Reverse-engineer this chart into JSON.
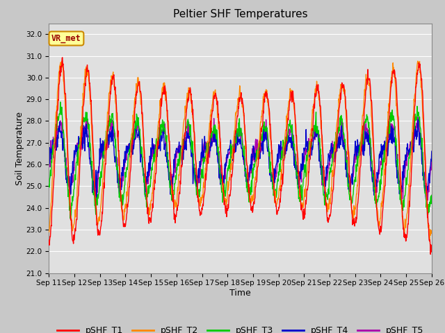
{
  "title": "Peltier SHF Temperatures",
  "xlabel": "Time",
  "ylabel": "Soil Temperature",
  "ylim": [
    21.0,
    32.5
  ],
  "yticks": [
    21.0,
    22.0,
    23.0,
    24.0,
    25.0,
    26.0,
    27.0,
    28.0,
    29.0,
    30.0,
    31.0,
    32.0
  ],
  "xtick_labels": [
    "Sep 11",
    "Sep 12",
    "Sep 13",
    "Sep 14",
    "Sep 15",
    "Sep 16",
    "Sep 17",
    "Sep 18",
    "Sep 19",
    "Sep 20",
    "Sep 21",
    "Sep 22",
    "Sep 23",
    "Sep 24",
    "Sep 25",
    "Sep 26"
  ],
  "series_colors": {
    "pSHF_T1": "#ff0000",
    "pSHF_T2": "#ff8800",
    "pSHF_T3": "#00cc00",
    "pSHF_T4": "#0000cc",
    "pSHF_T5": "#aa00aa"
  },
  "annotation_text": "VR_met",
  "annotation_bg": "#ffff99",
  "annotation_border": "#cc8800",
  "annotation_text_color": "#990000",
  "fig_bg": "#c8c8c8",
  "plot_bg": "#e0e0e0",
  "grid_color": "#ffffff",
  "title_fontsize": 11,
  "axis_label_fontsize": 9,
  "tick_fontsize": 7.5,
  "legend_fontsize": 9,
  "line_width": 1.0
}
